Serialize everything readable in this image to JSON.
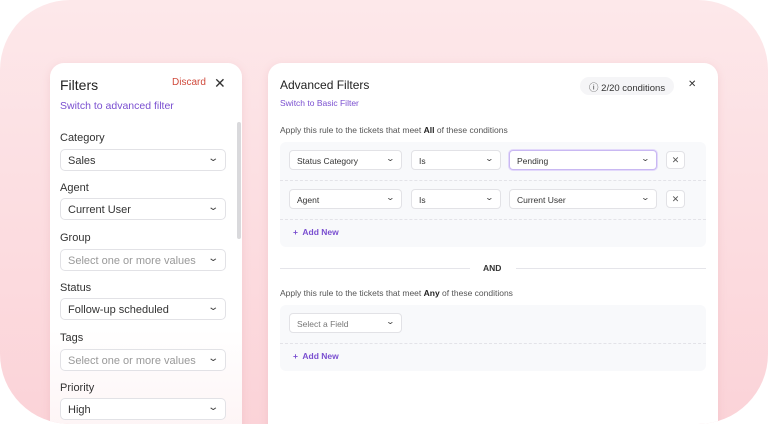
{
  "filters": {
    "title": "Filters",
    "discard": "Discard",
    "switch_link": "Switch to advanced filter",
    "fields": [
      {
        "label": "Category",
        "value": "Sales",
        "placeholder": false
      },
      {
        "label": "Agent",
        "value": "Current User",
        "placeholder": false
      },
      {
        "label": "Group",
        "value": "Select one or more values",
        "placeholder": true
      },
      {
        "label": "Status",
        "value": "Follow-up scheduled",
        "placeholder": false
      },
      {
        "label": "Tags",
        "value": "Select one or more values",
        "placeholder": true
      },
      {
        "label": "Priority",
        "value": "High",
        "placeholder": false
      }
    ]
  },
  "advanced": {
    "title": "Advanced Filters",
    "switch_link": "Switch to Basic Filter",
    "conditions_badge": "2/20 conditions",
    "all_text_pre": "Apply this rule to the tickets that meet ",
    "all_text_bold": "All",
    "all_text_post": " of these conditions",
    "all_rows": [
      {
        "field": "Status Category",
        "operator": "Is",
        "value": "Pending"
      },
      {
        "field": "Agent",
        "operator": "Is",
        "value": "Current User"
      }
    ],
    "add_new": "Add New",
    "and_label": "AND",
    "any_text_pre": "Apply this rule to the tickets that meet ",
    "any_text_bold": "Any",
    "any_text_post": " of these conditions",
    "any_field_placeholder": "Select a Field"
  },
  "colors": {
    "accent": "#7a4fd0",
    "discard": "#d04a3c",
    "background": "#fbd3d8"
  }
}
